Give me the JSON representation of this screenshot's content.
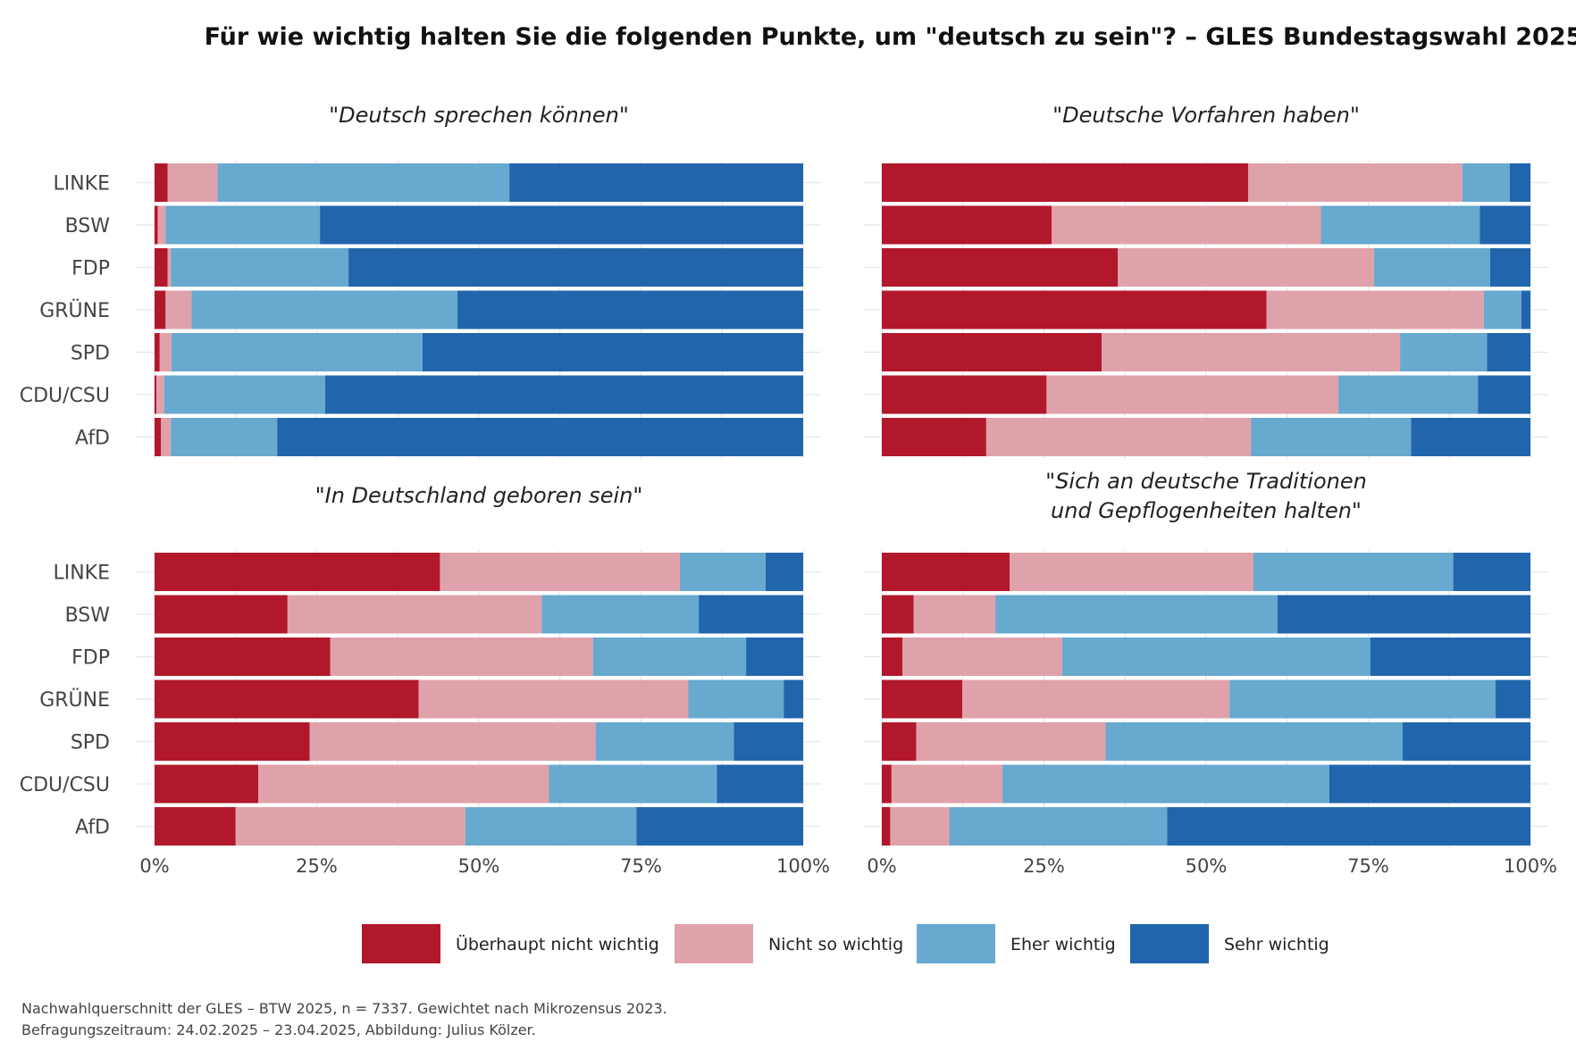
{
  "title": "Für wie wichtig halten Sie die folgenden Punkte, um \"deutsch zu sein\"? – GLES Bundestagswahl 2025",
  "caption": [
    "Nachwahlquerschnitt der GLES – BTW 2025, n = 7337. Gewichtet nach Mikrozensus 2023.",
    "Befragungszeitraum: 24.02.2025 – 23.04.2025, Abbildung: Julius Kölzer."
  ],
  "colors": {
    "Überhaupt nicht wichtig": "#b2182b",
    "Nicht so wichtig": "#e0a2aa",
    "Eher wichtig": "#67a9cf",
    "Sehr wichtig": "#2166ac"
  },
  "chart_data": {
    "type": "bar",
    "orientation": "horizontal",
    "stacked": true,
    "categories": [
      "LINKE",
      "BSW",
      "FDP",
      "GRÜNE",
      "SPD",
      "CDU/CSU",
      "AfD"
    ],
    "series_names": [
      "Überhaupt nicht wichtig",
      "Nicht so wichtig",
      "Eher wichtig",
      "Sehr wichtig"
    ],
    "x_ticks": [
      "0%",
      "25%",
      "50%",
      "75%",
      "100%"
    ],
    "xlim": [
      0,
      100
    ],
    "legend_position": "bottom",
    "grid": true,
    "facets": [
      {
        "title": [
          "\"Deutsch sprechen können\""
        ],
        "values": [
          [
            2,
            7.7,
            45,
            45.3
          ],
          [
            0.5,
            1.2,
            23.8,
            74.5
          ],
          [
            2,
            0.5,
            27.4,
            70.1
          ],
          [
            1.7,
            4,
            41,
            53.3
          ],
          [
            0.8,
            1.8,
            38.7,
            58.7
          ],
          [
            0.3,
            1.2,
            24.8,
            73.7
          ],
          [
            1,
            1.5,
            16.4,
            81.1
          ]
        ]
      },
      {
        "title": [
          "\"Deutsche Vorfahren haben\""
        ],
        "values": [
          [
            56.5,
            33,
            7.3,
            3.2
          ],
          [
            26.2,
            41.5,
            24.5,
            7.8
          ],
          [
            36.4,
            39.5,
            17.9,
            6.2
          ],
          [
            59.3,
            33.5,
            5.8,
            1.4
          ],
          [
            33.9,
            46,
            13.4,
            6.7
          ],
          [
            25.4,
            45,
            21.5,
            8.1
          ],
          [
            16.1,
            40.8,
            24.7,
            18.4
          ]
        ]
      },
      {
        "title": [
          "\"In Deutschland geboren sein\""
        ],
        "values": [
          [
            44,
            37,
            13.2,
            5.8
          ],
          [
            20.5,
            39.2,
            24.2,
            16.1
          ],
          [
            27.1,
            40.5,
            23.6,
            8.8
          ],
          [
            40.7,
            41.6,
            14.7,
            3
          ],
          [
            23.9,
            44.1,
            21.3,
            10.7
          ],
          [
            16,
            44.8,
            25.9,
            13.3
          ],
          [
            12.5,
            35.4,
            26.4,
            25.7
          ]
        ]
      },
      {
        "title": [
          "\"Sich an deutsche Traditionen",
          "und Gepflogenheiten halten\""
        ],
        "values": [
          [
            19.7,
            37.6,
            30.8,
            11.9
          ],
          [
            4.9,
            12.6,
            43.5,
            39
          ],
          [
            3.2,
            24.6,
            47.5,
            24.7
          ],
          [
            12.4,
            41.2,
            41,
            5.4
          ],
          [
            5.3,
            29.2,
            45.8,
            19.7
          ],
          [
            1.5,
            17.1,
            50.4,
            31
          ],
          [
            1.3,
            9.1,
            33.6,
            56
          ]
        ]
      }
    ]
  }
}
